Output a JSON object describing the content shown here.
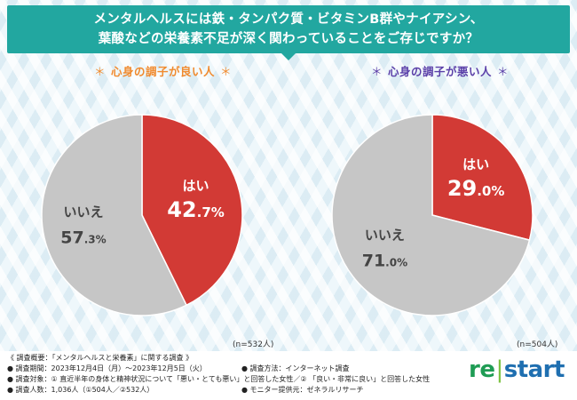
{
  "banner": {
    "line1": "メンタルヘルスには鉄・タンパク質・ビタミンB群やナイアシン、",
    "line2": "葉酸などの栄養素不足が深く関わっていることをご存じですか？"
  },
  "panels": {
    "good": {
      "star": "＊",
      "label": "心身の調子が良い人",
      "n": "(n=532人)"
    },
    "bad": {
      "star": "＊",
      "label": "心身の調子が悪い人",
      "n": "(n=504人)"
    }
  },
  "chart_data": [
    {
      "type": "pie",
      "title": "心身の調子が良い人",
      "slices": [
        {
          "label": "はい",
          "value": 42.7,
          "display_int": "42",
          "display_dec": ".7",
          "unit": "%",
          "color": "#d23a35"
        },
        {
          "label": "いいえ",
          "value": 57.3,
          "display_int": "57",
          "display_dec": ".3",
          "unit": "%",
          "color": "#c6c6c6"
        }
      ],
      "n": "n=532人"
    },
    {
      "type": "pie",
      "title": "心身の調子が悪い人",
      "slices": [
        {
          "label": "はい",
          "value": 29.0,
          "display_int": "29",
          "display_dec": ".0",
          "unit": "%",
          "color": "#d23a35"
        },
        {
          "label": "いいえ",
          "value": 71.0,
          "display_int": "71",
          "display_dec": ".0",
          "unit": "%",
          "color": "#c6c6c6"
        }
      ],
      "n": "n=504人"
    }
  ],
  "footer": {
    "lines": [
      "《 調査概要：「メンタルヘルスと栄養素」に関する調査 》",
      "● 調査期間：2023年12月4日（月）〜2023年12月5日（火）",
      "● 調査対象：① 直近半年の身体と精神状況について「悪い・とても悪い」と回答した女性／② 「良い・非常に良い」と回答した女性",
      "● 調査人数：1,036人（①504人／②532人）"
    ],
    "right_lines": [
      "● 調査方法：インターネット調査",
      "● モニター提供元：ゼネラルリサーチ"
    ]
  },
  "logo": {
    "re": "re",
    "bar": "|",
    "start": "start"
  }
}
